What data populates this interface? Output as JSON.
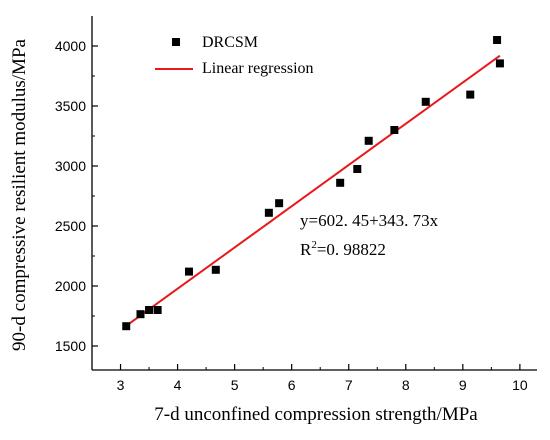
{
  "chart_data": {
    "type": "scatter",
    "xlabel": "7-d unconfined compression strength/MPa",
    "ylabel": "90-d compressive resilient modulus/MPa",
    "xlim": [
      2.5,
      10.3
    ],
    "ylim": [
      1300,
      4250
    ],
    "xticks": [
      3,
      4,
      5,
      6,
      7,
      8,
      9,
      10
    ],
    "yticks": [
      1500,
      2000,
      2500,
      3000,
      3500,
      4000
    ],
    "grid": false,
    "legend_position": "top-left",
    "series": [
      {
        "name": "DRCSM",
        "kind": "scatter",
        "marker": "square",
        "color": "#000000",
        "points": [
          {
            "x": 3.1,
            "y": 1665
          },
          {
            "x": 3.35,
            "y": 1765
          },
          {
            "x": 3.5,
            "y": 1800
          },
          {
            "x": 3.65,
            "y": 1800
          },
          {
            "x": 4.2,
            "y": 2120
          },
          {
            "x": 4.67,
            "y": 2135
          },
          {
            "x": 5.6,
            "y": 2610
          },
          {
            "x": 5.78,
            "y": 2690
          },
          {
            "x": 6.85,
            "y": 2860
          },
          {
            "x": 7.15,
            "y": 2975
          },
          {
            "x": 7.35,
            "y": 3210
          },
          {
            "x": 7.8,
            "y": 3300
          },
          {
            "x": 8.35,
            "y": 3535
          },
          {
            "x": 9.13,
            "y": 3595
          },
          {
            "x": 9.6,
            "y": 4050
          },
          {
            "x": 9.65,
            "y": 3855
          }
        ]
      },
      {
        "name": "Linear regression",
        "kind": "line",
        "color": "#e8191d",
        "intercept": 602.45,
        "slope": 343.73,
        "x_range": [
          3.1,
          9.65
        ]
      }
    ],
    "annotations": {
      "equation": "y=602. 45+343. 73x",
      "r2_prefix": "R",
      "r2_sup": "2",
      "r2_value": "=0. 98822"
    }
  }
}
